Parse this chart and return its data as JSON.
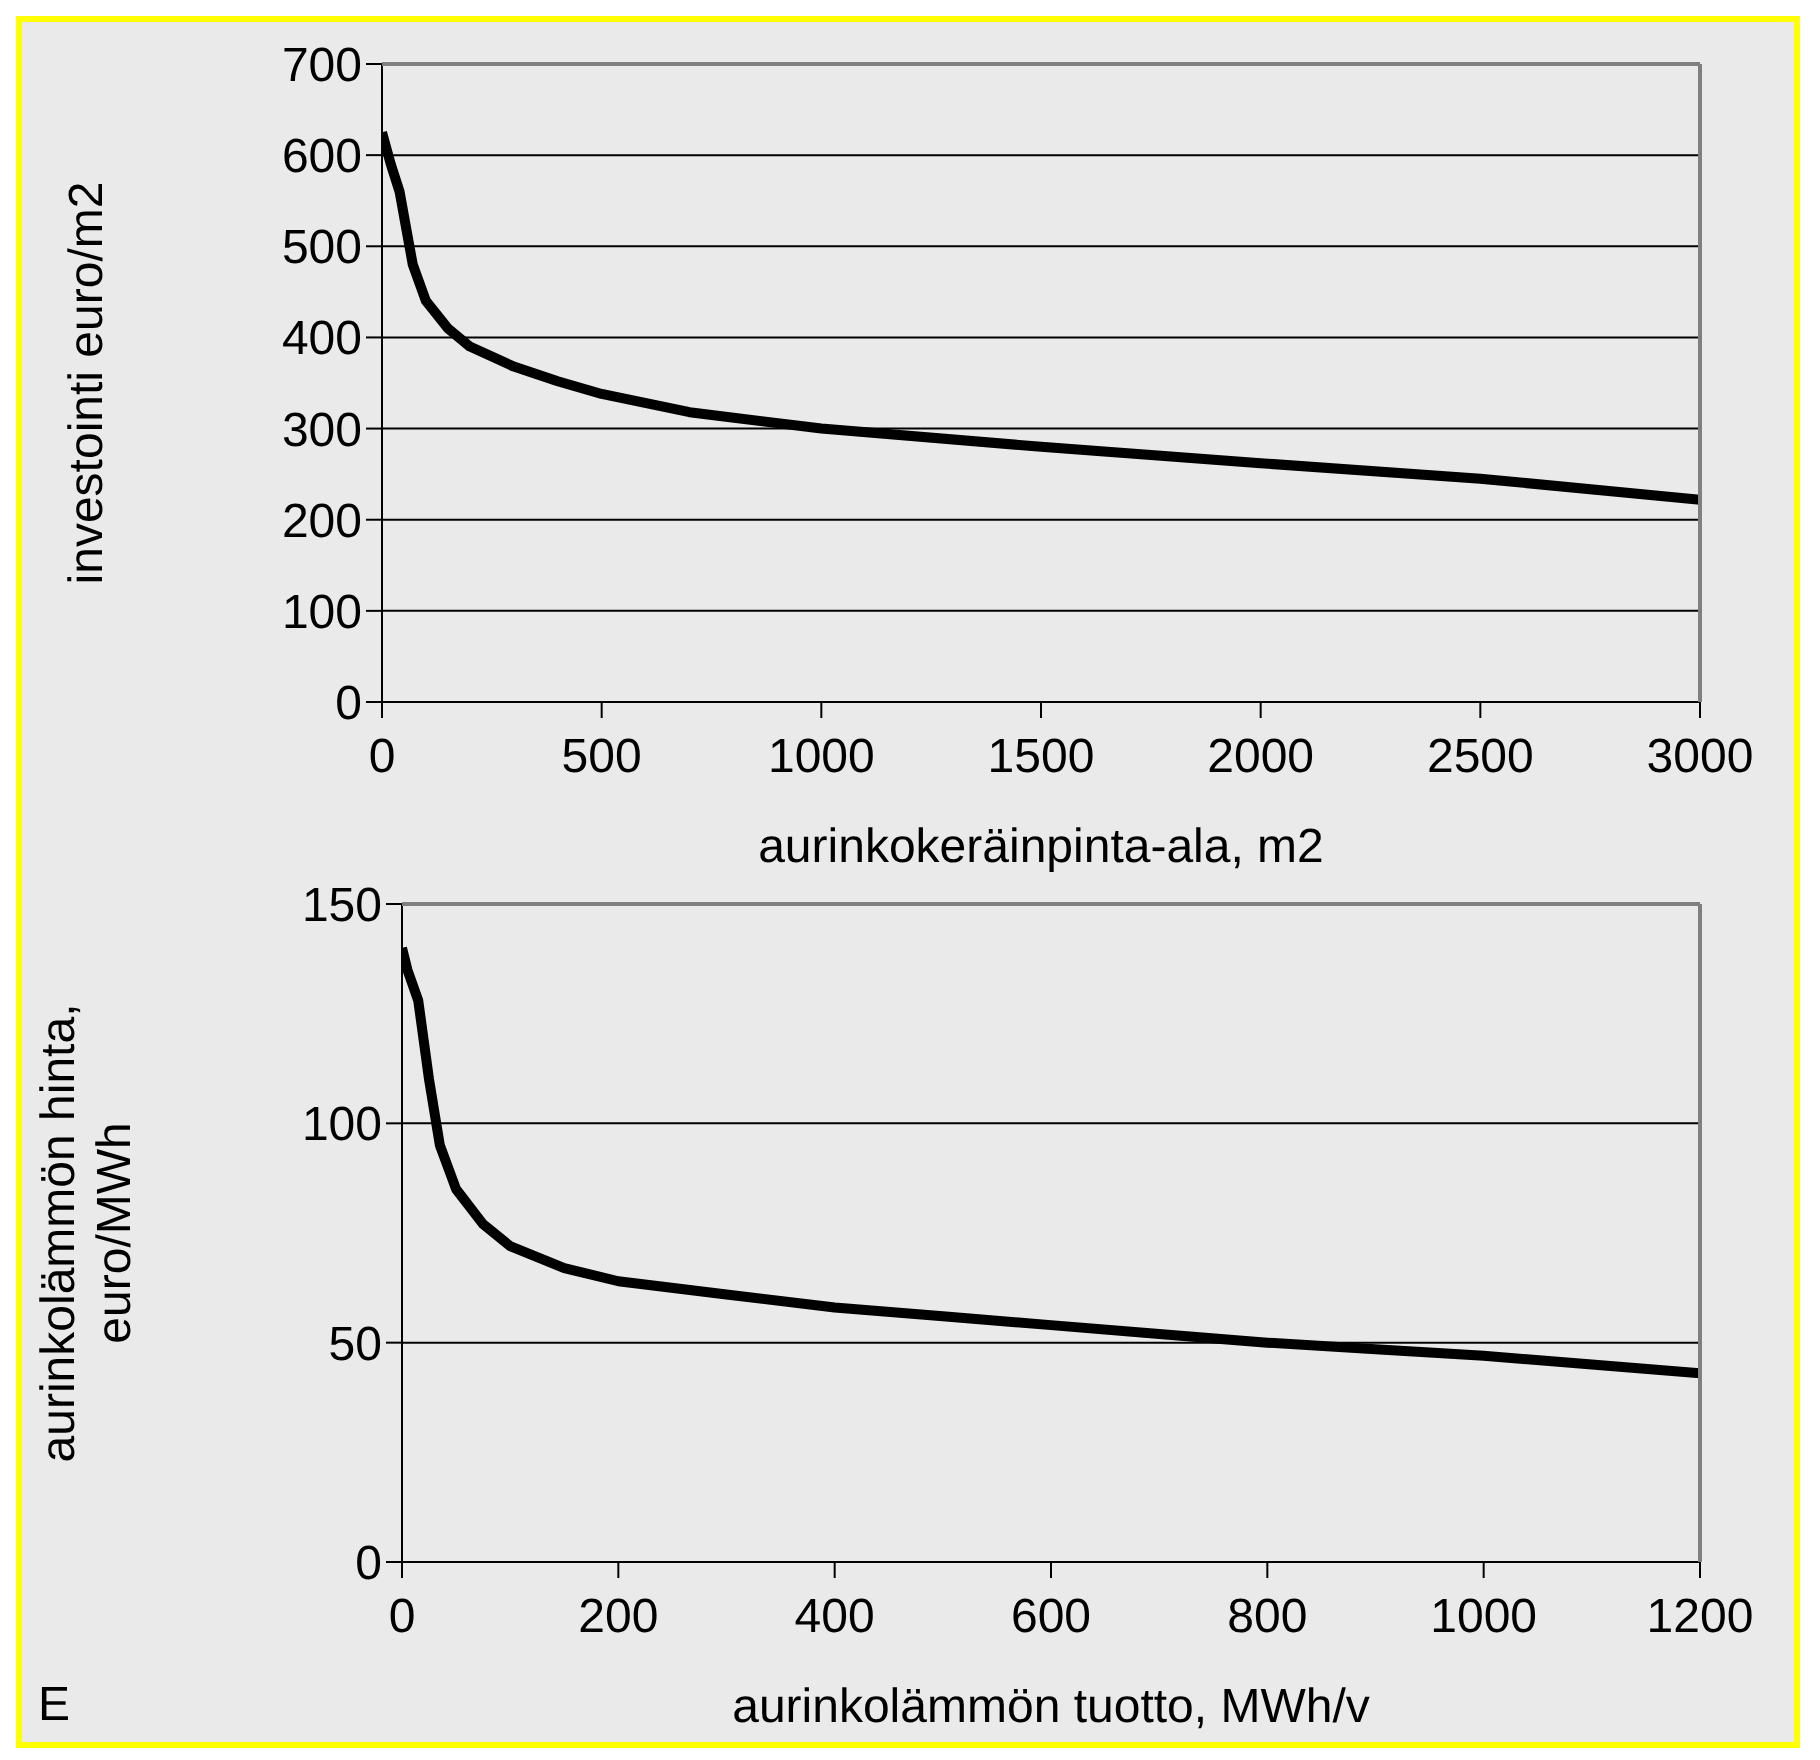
{
  "chart_data": [
    {
      "type": "line",
      "xlabel": "aurinkokeräinpinta-ala,  m2",
      "ylabel": "investointi euro/m2",
      "grid": "y",
      "marker": "none",
      "line_style": "solid",
      "xlim": [
        0,
        3000
      ],
      "xticks": [
        0,
        500,
        1000,
        1500,
        2000,
        2500,
        3000
      ],
      "ylim": [
        0,
        700
      ],
      "yticks": [
        0,
        100,
        200,
        300,
        400,
        500,
        600,
        700
      ],
      "series": [
        {
          "color": "#000000",
          "x": [
            0,
            20,
            40,
            55,
            70,
            100,
            150,
            200,
            300,
            400,
            500,
            700,
            1000,
            1500,
            2000,
            2500,
            3000
          ],
          "values": [
            625,
            590,
            560,
            520,
            480,
            440,
            410,
            390,
            368,
            352,
            338,
            318,
            300,
            280,
            262,
            245,
            222
          ]
        }
      ]
    },
    {
      "type": "line",
      "xlabel": "aurinkolämmön tuotto, MWh/v",
      "ylabel": "aurinkolämmön hinta,\neuro/MWh",
      "grid": "y",
      "marker": "none",
      "line_style": "solid",
      "xlim": [
        0,
        1200
      ],
      "xticks": [
        0,
        200,
        400,
        600,
        800,
        1000,
        1200
      ],
      "ylim": [
        0,
        150
      ],
      "yticks": [
        0,
        50,
        100,
        150
      ],
      "annotations": [
        "E"
      ],
      "series": [
        {
          "color": "#000000",
          "x": [
            0,
            5,
            15,
            25,
            35,
            50,
            75,
            100,
            150,
            200,
            300,
            400,
            500,
            600,
            700,
            800,
            900,
            1000,
            1100,
            1200
          ],
          "values": [
            140,
            135,
            128,
            110,
            95,
            85,
            77,
            72,
            67,
            64,
            61,
            58,
            56,
            54,
            52,
            50,
            48.5,
            47,
            45,
            43
          ]
        }
      ]
    }
  ]
}
